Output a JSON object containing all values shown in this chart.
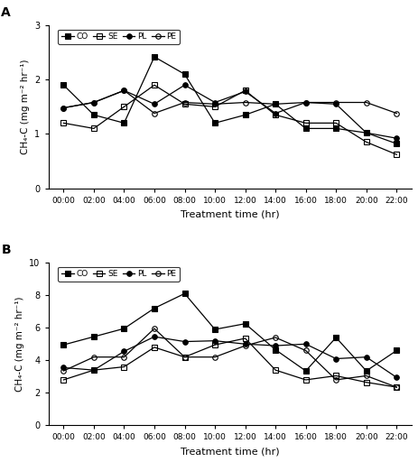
{
  "x_labels": [
    "00:00",
    "02:00",
    "04:00",
    "06:00",
    "08:00",
    "10:00",
    "12:00",
    "14:00",
    "16:00",
    "18:00",
    "20:00",
    "22:00"
  ],
  "x_positions": [
    0,
    1,
    2,
    3,
    4,
    5,
    6,
    7,
    8,
    9,
    10,
    11
  ],
  "A": {
    "title": "A",
    "ylim": [
      0,
      3
    ],
    "yticks": [
      0,
      1,
      2,
      3
    ],
    "ylabel": "CH₄-C (mg m⁻² hr⁻¹)",
    "CO": [
      1.9,
      1.35,
      1.2,
      2.42,
      2.1,
      1.2,
      1.35,
      1.55,
      1.1,
      1.1,
      1.02,
      0.82
    ],
    "SE": [
      1.2,
      1.1,
      1.5,
      1.9,
      1.55,
      1.5,
      1.8,
      1.35,
      1.2,
      1.2,
      0.85,
      0.62
    ],
    "PL": [
      1.48,
      1.58,
      1.8,
      1.55,
      1.9,
      1.58,
      1.78,
      1.38,
      1.58,
      1.55,
      1.02,
      0.92
    ],
    "PE": [
      1.48,
      1.58,
      1.8,
      1.38,
      1.58,
      1.55,
      1.58,
      1.55,
      1.58,
      1.58,
      1.58,
      1.38
    ]
  },
  "B": {
    "title": "B",
    "ylim": [
      0,
      10
    ],
    "yticks": [
      0,
      2,
      4,
      6,
      8,
      10
    ],
    "ylabel": "CH₄-C (mg m⁻² hr⁻¹)",
    "CO": [
      4.95,
      5.45,
      5.95,
      7.2,
      8.1,
      5.9,
      6.25,
      4.65,
      3.35,
      5.4,
      3.35,
      4.6
    ],
    "SE": [
      2.8,
      3.4,
      3.6,
      4.8,
      4.2,
      4.95,
      5.35,
      3.4,
      2.8,
      3.05,
      2.65,
      2.35
    ],
    "PL": [
      3.55,
      3.4,
      4.55,
      5.45,
      5.15,
      5.2,
      5.0,
      4.9,
      5.0,
      4.1,
      4.2,
      2.95
    ],
    "PE": [
      3.35,
      4.2,
      4.2,
      5.95,
      4.2,
      4.2,
      4.9,
      5.4,
      4.6,
      2.8,
      3.05,
      2.35
    ]
  },
  "series_styles": {
    "CO": {
      "marker": "s",
      "fillstyle": "full",
      "color": "black",
      "linestyle": "-"
    },
    "SE": {
      "marker": "s",
      "fillstyle": "none",
      "color": "black",
      "linestyle": "-"
    },
    "PL": {
      "marker": "o",
      "fillstyle": "full",
      "color": "black",
      "linestyle": "-"
    },
    "PE": {
      "marker": "o",
      "fillstyle": "none",
      "color": "black",
      "linestyle": "-"
    }
  },
  "xlabel": "Treatment time (hr)",
  "markersize": 4,
  "linewidth": 0.9
}
